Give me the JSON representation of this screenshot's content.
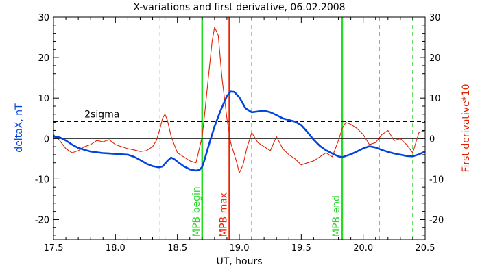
{
  "chart_data": {
    "type": "line",
    "title": "X-variations and first derivative, 06.02.2008",
    "xlabel": "UT, hours",
    "ylabel_left": "deltaX, nT",
    "ylabel_right": "First derivative*10",
    "xlim": [
      17.5,
      20.5
    ],
    "ylim": [
      -25,
      30
    ],
    "ylim_right": [
      -25,
      30
    ],
    "xticks": [
      "17.5",
      "18.0",
      "18.5",
      "19.0",
      "19.5",
      "20.0",
      "20.5"
    ],
    "xtick_values": [
      17.5,
      18.0,
      18.5,
      19.0,
      19.5,
      20.0,
      20.5
    ],
    "yticks": [
      "-20",
      "-10",
      "0",
      "10",
      "20",
      "30"
    ],
    "ytick_values": [
      -20,
      -10,
      0,
      10,
      20,
      30
    ],
    "grid": false,
    "legend": "none",
    "colors": {
      "deltaX": "#0044dd",
      "derivative": "#dd2200",
      "mpb_lines": "#22dd22",
      "mpb_max_line": "#ee2200",
      "dashed_green": "#22cc22",
      "sigma_line": "#000000",
      "left_label": "#0044dd",
      "right_label": "#dd2200"
    },
    "series": [
      {
        "key": "deltaX",
        "axis": "left",
        "x": [
          17.5,
          17.55,
          17.6,
          17.65,
          17.7,
          17.75,
          17.8,
          17.85,
          17.9,
          17.95,
          18.0,
          18.05,
          18.1,
          18.15,
          18.2,
          18.25,
          18.3,
          18.35,
          18.38,
          18.42,
          18.45,
          18.48,
          18.5,
          18.55,
          18.6,
          18.65,
          18.68,
          18.7,
          18.72,
          18.75,
          18.8,
          18.85,
          18.9,
          18.93,
          18.96,
          19.0,
          19.05,
          19.1,
          19.15,
          19.2,
          19.25,
          19.3,
          19.35,
          19.4,
          19.45,
          19.5,
          19.55,
          19.6,
          19.65,
          19.7,
          19.75,
          19.8,
          19.83,
          19.86,
          19.9,
          19.95,
          20.0,
          20.05,
          20.1,
          20.15,
          20.2,
          20.25,
          20.3,
          20.35,
          20.4,
          20.45,
          20.5
        ],
        "y": [
          0.5,
          0.3,
          -0.5,
          -1.5,
          -2.3,
          -2.8,
          -3.2,
          -3.4,
          -3.6,
          -3.7,
          -3.8,
          -3.9,
          -4.0,
          -4.5,
          -5.3,
          -6.2,
          -6.8,
          -7.1,
          -6.9,
          -5.5,
          -4.7,
          -5.2,
          -5.7,
          -6.8,
          -7.6,
          -7.9,
          -7.7,
          -7.0,
          -5.2,
          -2.0,
          3.0,
          7.0,
          10.5,
          11.6,
          11.5,
          10.2,
          7.5,
          6.5,
          6.7,
          6.9,
          6.5,
          5.8,
          5.0,
          4.6,
          4.2,
          3.3,
          1.6,
          -0.3,
          -1.8,
          -2.9,
          -3.7,
          -4.4,
          -4.6,
          -4.3,
          -3.9,
          -3.2,
          -2.4,
          -1.9,
          -2.2,
          -2.8,
          -3.3,
          -3.7,
          -4.0,
          -4.3,
          -4.4,
          -3.9,
          -3.2
        ]
      },
      {
        "key": "derivative",
        "axis": "right",
        "x": [
          17.5,
          17.55,
          17.6,
          17.65,
          17.7,
          17.75,
          17.8,
          17.85,
          17.9,
          17.95,
          18.0,
          18.05,
          18.1,
          18.15,
          18.2,
          18.25,
          18.3,
          18.33,
          18.36,
          18.38,
          18.4,
          18.42,
          18.45,
          18.5,
          18.55,
          18.6,
          18.65,
          18.7,
          18.72,
          18.75,
          18.78,
          18.8,
          18.83,
          18.86,
          18.9,
          18.93,
          18.96,
          18.98,
          19.0,
          19.03,
          19.06,
          19.1,
          19.15,
          19.2,
          19.25,
          19.3,
          19.35,
          19.4,
          19.45,
          19.5,
          19.55,
          19.6,
          19.65,
          19.7,
          19.75,
          19.8,
          19.83,
          19.86,
          19.9,
          19.95,
          20.0,
          20.05,
          20.1,
          20.15,
          20.2,
          20.25,
          20.3,
          20.35,
          20.4,
          20.45,
          20.5
        ],
        "y": [
          1.0,
          -0.5,
          -2.5,
          -3.5,
          -3.0,
          -2.0,
          -1.5,
          -0.5,
          -0.8,
          -0.3,
          -1.5,
          -2.0,
          -2.5,
          -2.8,
          -3.2,
          -3.0,
          -2.0,
          -0.5,
          2.5,
          5.0,
          6.0,
          4.5,
          0.5,
          -3.5,
          -4.5,
          -5.5,
          -6.0,
          0.5,
          6.0,
          15.0,
          24.0,
          27.5,
          25.5,
          15.0,
          5.0,
          -1.0,
          -4.0,
          -6.0,
          -8.5,
          -6.5,
          -2.5,
          1.5,
          -1.0,
          -2.0,
          -3.0,
          0.5,
          -2.5,
          -4.0,
          -5.0,
          -6.5,
          -6.0,
          -5.5,
          -4.5,
          -3.5,
          -4.5,
          -0.5,
          2.5,
          4.0,
          3.5,
          2.5,
          1.0,
          -1.5,
          -1.0,
          1.0,
          2.0,
          -0.5,
          0.0,
          -1.5,
          -3.5,
          1.5,
          2.0
        ]
      }
    ],
    "reference_lines": {
      "zero": 0,
      "sigma": {
        "label": "2sigma",
        "value": 4.2,
        "label_x": 17.75
      }
    },
    "vertical_markers": [
      {
        "x": 18.7,
        "style": "solid",
        "color": "#22dd22",
        "label": "MPB begin"
      },
      {
        "x": 18.92,
        "style": "solid",
        "color": "#ee2200",
        "label": "MPB max"
      },
      {
        "x": 19.83,
        "style": "solid",
        "color": "#22dd22",
        "label": "MPB end"
      },
      {
        "x": 18.36,
        "style": "dashed",
        "color": "#22cc22",
        "label": ""
      },
      {
        "x": 19.1,
        "style": "dashed",
        "color": "#22cc22",
        "label": ""
      },
      {
        "x": 20.13,
        "style": "dashed",
        "color": "#22cc22",
        "label": ""
      },
      {
        "x": 20.4,
        "style": "dashed",
        "color": "#22cc22",
        "label": ""
      }
    ]
  }
}
